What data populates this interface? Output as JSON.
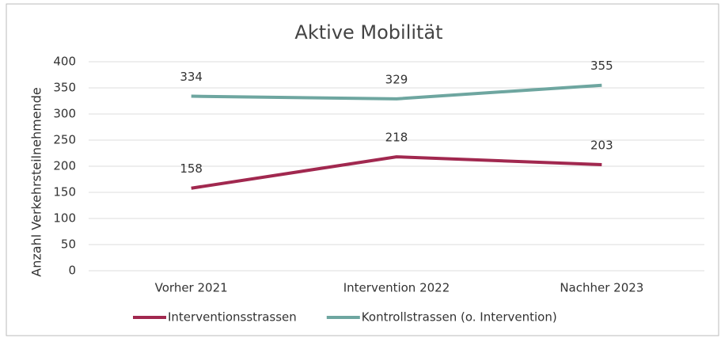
{
  "chart_data": {
    "type": "line",
    "title": "Aktive Mobilität",
    "y_label": "Anzahl Verkehrsteilnehmende",
    "categories": [
      "Vorher 2021",
      "Intervention 2022",
      "Nachher 2023"
    ],
    "series": [
      {
        "name": "Interventionsstrassen",
        "color": "#a1284f",
        "values": [
          158,
          218,
          203
        ]
      },
      {
        "name": "Kontrollstrassen (o. Intervention)",
        "color": "#6ea6a0",
        "values": [
          334,
          329,
          355
        ]
      }
    ],
    "ylim": [
      0,
      400
    ],
    "yticks": [
      0,
      50,
      100,
      150,
      200,
      250,
      300,
      350,
      400
    ],
    "grid": true,
    "legend": "bottom"
  }
}
